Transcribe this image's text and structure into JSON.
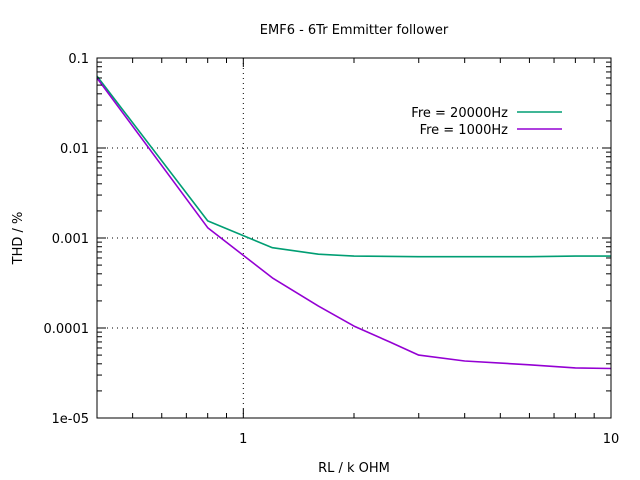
{
  "chart_data": {
    "type": "line",
    "title": "EMF6 - 6Tr Emmitter follower",
    "xlabel": "RL / k OHM",
    "ylabel": "THD / %",
    "x_scale": "log",
    "y_scale": "log",
    "xlim": [
      0.4,
      10
    ],
    "ylim": [
      1e-05,
      0.1
    ],
    "grid": "dotted, major decades",
    "legend_position": "top-right",
    "x_ticks": [
      {
        "value": 1,
        "label": "1"
      },
      {
        "value": 10,
        "label": "10"
      }
    ],
    "y_ticks": [
      {
        "value": 0.1,
        "label": "0.1"
      },
      {
        "value": 0.01,
        "label": "0.01"
      },
      {
        "value": 0.001,
        "label": "0.001"
      },
      {
        "value": 0.0001,
        "label": "0.0001"
      },
      {
        "value": 1e-05,
        "label": "1e-05"
      }
    ],
    "series": [
      {
        "name": "Fre = 20000Hz",
        "color": "#009e73",
        "x": [
          0.4,
          0.8,
          1.2,
          1.6,
          2.0,
          3.0,
          4.0,
          6.0,
          8.0,
          10.0
        ],
        "y": [
          0.063,
          0.00155,
          0.00078,
          0.00066,
          0.00063,
          0.00062,
          0.00062,
          0.00062,
          0.00063,
          0.00063
        ]
      },
      {
        "name": "Fre = 1000Hz",
        "color": "#9400d3",
        "x": [
          0.4,
          0.8,
          1.2,
          1.6,
          2.0,
          2.5,
          3.0,
          4.0,
          6.0,
          8.0,
          10.0
        ],
        "y": [
          0.06,
          0.0013,
          0.00036,
          0.000175,
          0.000105,
          7e-05,
          5e-05,
          4.3e-05,
          3.9e-05,
          3.6e-05,
          3.55e-05
        ]
      }
    ]
  }
}
